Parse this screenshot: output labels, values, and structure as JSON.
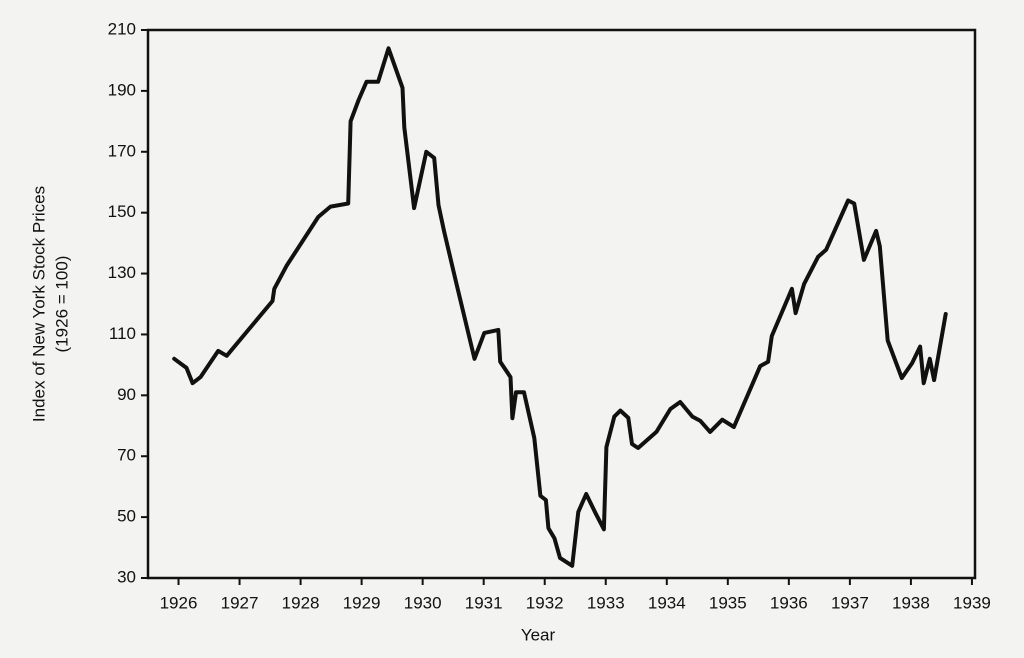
{
  "chart_data": {
    "type": "line",
    "x_label": "Year",
    "y_label": [
      "Index of New York Stock Prices",
      "(1926 = 100)"
    ],
    "x": [
      1925.93,
      1926.13,
      1926.23,
      1926.36,
      1926.65,
      1926.79,
      1927.54,
      1927.57,
      1927.77,
      1928.29,
      1928.49,
      1928.78,
      1928.82,
      1928.95,
      1929.08,
      1929.27,
      1929.44,
      1929.67,
      1929.7,
      1929.86,
      1930.06,
      1930.19,
      1930.26,
      1930.35,
      1930.55,
      1930.85,
      1931.01,
      1931.24,
      1931.27,
      1931.44,
      1931.47,
      1931.53,
      1931.66,
      1931.83,
      1931.93,
      1932.02,
      1932.06,
      1932.16,
      1932.25,
      1932.45,
      1932.55,
      1932.68,
      1932.84,
      1932.97,
      1933.01,
      1933.14,
      1933.24,
      1933.37,
      1933.43,
      1933.53,
      1933.83,
      1934.06,
      1934.22,
      1934.42,
      1934.55,
      1934.71,
      1934.91,
      1935.1,
      1935.53,
      1935.66,
      1935.72,
      1936.05,
      1936.11,
      1936.25,
      1936.48,
      1936.61,
      1936.97,
      1937.07,
      1937.23,
      1937.43,
      1937.49,
      1937.62,
      1937.85,
      1938.02,
      1938.15,
      1938.21,
      1938.31,
      1938.38,
      1938.57
    ],
    "values": [
      102,
      99,
      94,
      96,
      104.6,
      103,
      121,
      125,
      132.5,
      148.6,
      152,
      153,
      180,
      187,
      193,
      193,
      204,
      191,
      178,
      151.5,
      170,
      168,
      152.5,
      144,
      127,
      102,
      110.5,
      111.5,
      101,
      96,
      82.5,
      91,
      91,
      76,
      57,
      55.6,
      46.4,
      43,
      36.6,
      34,
      51.7,
      57.6,
      51,
      46,
      73,
      83,
      85,
      82.6,
      74,
      72.7,
      78,
      85.5,
      87.8,
      83,
      81.6,
      78,
      82,
      79.6,
      99.6,
      101,
      109.5,
      125,
      117,
      126.6,
      135.5,
      137.8,
      154,
      153,
      134.5,
      144,
      139,
      108,
      95.7,
      100.6,
      106,
      94,
      102,
      95,
      116.7
    ],
    "color": "#111111",
    "xlim": [
      1925.5,
      1939.05
    ],
    "xticks": [
      1926,
      1927,
      1928,
      1929,
      1930,
      1931,
      1932,
      1933,
      1934,
      1935,
      1936,
      1937,
      1938,
      1939
    ],
    "ylim": [
      30,
      210
    ],
    "yticks": [
      30,
      50,
      70,
      90,
      110,
      130,
      150,
      170,
      190,
      210
    ],
    "grid": false
  }
}
